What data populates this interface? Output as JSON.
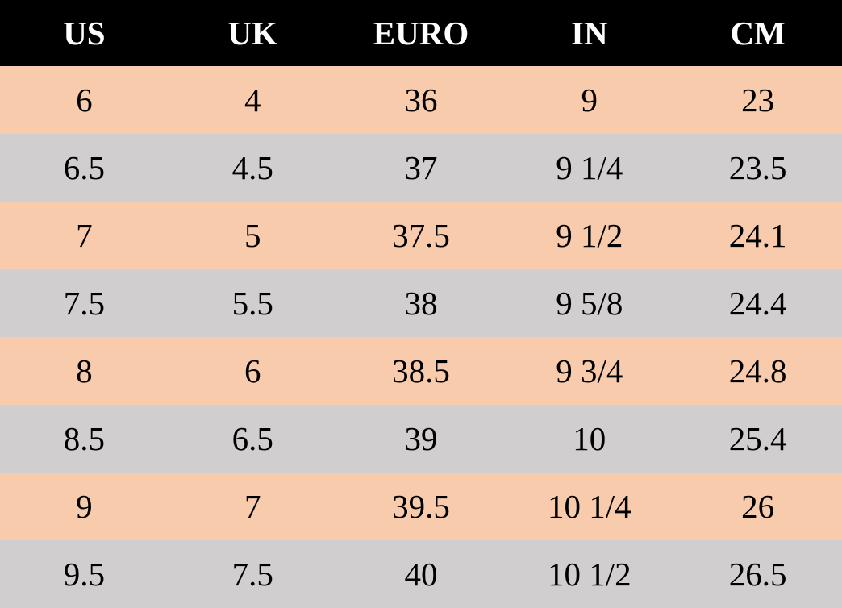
{
  "colors": {
    "header_bg": "#000000",
    "header_text": "#FFFFFF",
    "row_odd": "#F8CBAD",
    "row_even": "#D0CECE"
  },
  "table": {
    "headers": [
      "US",
      "UK",
      "EURO",
      "IN",
      "CM"
    ],
    "rows": [
      [
        "6",
        "4",
        "36",
        "9",
        "23"
      ],
      [
        "6.5",
        "4.5",
        "37",
        "9 1/4",
        "23.5"
      ],
      [
        "7",
        "5",
        "37.5",
        "9 1/2",
        "24.1"
      ],
      [
        "7.5",
        "5.5",
        "38",
        "9 5/8",
        "24.4"
      ],
      [
        "8",
        "6",
        "38.5",
        "9 3/4",
        "24.8"
      ],
      [
        "8.5",
        "6.5",
        "39",
        "10",
        "25.4"
      ],
      [
        "9",
        "7",
        "39.5",
        "10 1/4",
        "26"
      ],
      [
        "9.5",
        "7.5",
        "40",
        "10 1/2",
        "26.5"
      ]
    ]
  }
}
